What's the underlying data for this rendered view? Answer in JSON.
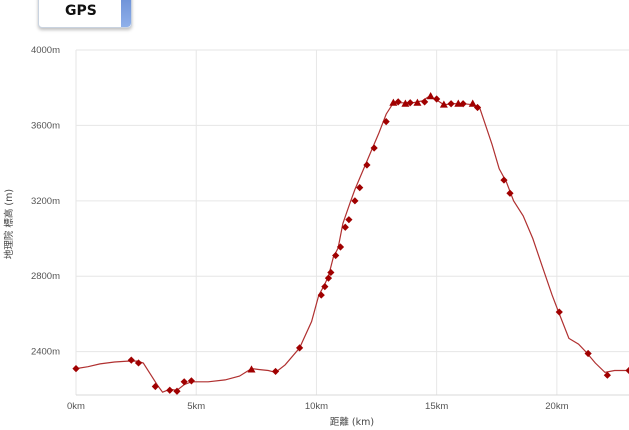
{
  "tab": {
    "label": "GPS"
  },
  "chart_data": {
    "type": "line",
    "xlabel": "距離 (km)",
    "ylabel": "地理院 標高 (m)",
    "xlim": [
      0,
      23
    ],
    "ylim": [
      2170,
      4000
    ],
    "grid": true,
    "x_ticks": [
      0,
      5,
      10,
      15,
      20
    ],
    "x_tick_labels": [
      "0km",
      "5km",
      "10km",
      "15km",
      "20km"
    ],
    "y_ticks": [
      2400,
      2800,
      3200,
      3600,
      4000
    ],
    "y_tick_labels": [
      "2400m",
      "2800m",
      "3200m",
      "3600m",
      "4000m"
    ],
    "colors": {
      "line": "#b03030",
      "marker": "#a00000",
      "grid": "#e6e6e6"
    },
    "series": [
      {
        "points": [
          [
            0.0,
            2310
          ],
          [
            0.5,
            2320
          ],
          [
            1.0,
            2335
          ],
          [
            1.6,
            2345
          ],
          [
            2.2,
            2350
          ],
          [
            2.55,
            2350
          ],
          [
            2.8,
            2340
          ],
          [
            3.1,
            2280
          ],
          [
            3.4,
            2220
          ],
          [
            3.6,
            2185
          ],
          [
            3.9,
            2200
          ],
          [
            4.2,
            2195
          ],
          [
            4.5,
            2225
          ],
          [
            4.8,
            2240
          ],
          [
            5.5,
            2240
          ],
          [
            6.2,
            2250
          ],
          [
            6.8,
            2270
          ],
          [
            7.3,
            2310
          ],
          [
            7.6,
            2305
          ],
          [
            8.0,
            2300
          ],
          [
            8.3,
            2290
          ],
          [
            8.7,
            2330
          ],
          [
            9.3,
            2420
          ],
          [
            9.8,
            2560
          ],
          [
            10.1,
            2700
          ],
          [
            10.3,
            2745
          ],
          [
            10.5,
            2800
          ],
          [
            10.7,
            2900
          ],
          [
            10.9,
            2950
          ],
          [
            11.1,
            3080
          ],
          [
            11.4,
            3190
          ],
          [
            11.6,
            3260
          ],
          [
            12.0,
            3380
          ],
          [
            12.3,
            3470
          ],
          [
            12.6,
            3560
          ],
          [
            12.9,
            3660
          ],
          [
            13.2,
            3720
          ],
          [
            13.5,
            3720
          ],
          [
            14.0,
            3720
          ],
          [
            14.4,
            3730
          ],
          [
            14.7,
            3755
          ],
          [
            15.0,
            3735
          ],
          [
            15.3,
            3710
          ],
          [
            15.7,
            3715
          ],
          [
            16.1,
            3715
          ],
          [
            16.5,
            3710
          ],
          [
            16.8,
            3690
          ],
          [
            17.3,
            3500
          ],
          [
            17.6,
            3370
          ],
          [
            17.9,
            3300
          ],
          [
            18.2,
            3200
          ],
          [
            18.6,
            3120
          ],
          [
            19.0,
            3000
          ],
          [
            19.4,
            2850
          ],
          [
            19.8,
            2700
          ],
          [
            20.1,
            2600
          ],
          [
            20.5,
            2470
          ],
          [
            20.9,
            2440
          ],
          [
            21.2,
            2400
          ],
          [
            21.6,
            2340
          ],
          [
            22.0,
            2290
          ],
          [
            22.4,
            2300
          ],
          [
            23.0,
            2300
          ]
        ],
        "markers": [
          {
            "x": 0.0,
            "y": 2310,
            "shape": "diamond"
          },
          {
            "x": 2.3,
            "y": 2355,
            "shape": "diamond"
          },
          {
            "x": 2.6,
            "y": 2340,
            "shape": "diamond"
          },
          {
            "x": 3.3,
            "y": 2215,
            "shape": "diamond"
          },
          {
            "x": 3.9,
            "y": 2195,
            "shape": "diamond"
          },
          {
            "x": 4.2,
            "y": 2190,
            "shape": "diamond"
          },
          {
            "x": 4.5,
            "y": 2240,
            "shape": "diamond"
          },
          {
            "x": 4.8,
            "y": 2245,
            "shape": "diamond"
          },
          {
            "x": 7.3,
            "y": 2305,
            "shape": "triangle"
          },
          {
            "x": 8.3,
            "y": 2295,
            "shape": "diamond"
          },
          {
            "x": 9.3,
            "y": 2420,
            "shape": "diamond"
          },
          {
            "x": 10.2,
            "y": 2700,
            "shape": "diamond"
          },
          {
            "x": 10.35,
            "y": 2745,
            "shape": "diamond"
          },
          {
            "x": 10.5,
            "y": 2790,
            "shape": "diamond"
          },
          {
            "x": 10.6,
            "y": 2820,
            "shape": "diamond"
          },
          {
            "x": 10.8,
            "y": 2910,
            "shape": "diamond"
          },
          {
            "x": 11.0,
            "y": 2955,
            "shape": "diamond"
          },
          {
            "x": 11.2,
            "y": 3060,
            "shape": "diamond"
          },
          {
            "x": 11.35,
            "y": 3100,
            "shape": "diamond"
          },
          {
            "x": 11.6,
            "y": 3200,
            "shape": "diamond"
          },
          {
            "x": 11.8,
            "y": 3270,
            "shape": "diamond"
          },
          {
            "x": 12.1,
            "y": 3390,
            "shape": "diamond"
          },
          {
            "x": 12.4,
            "y": 3480,
            "shape": "diamond"
          },
          {
            "x": 12.9,
            "y": 3620,
            "shape": "diamond"
          },
          {
            "x": 13.2,
            "y": 3720,
            "shape": "triangle"
          },
          {
            "x": 13.4,
            "y": 3725,
            "shape": "diamond"
          },
          {
            "x": 13.7,
            "y": 3715,
            "shape": "triangle"
          },
          {
            "x": 13.9,
            "y": 3720,
            "shape": "diamond"
          },
          {
            "x": 14.2,
            "y": 3720,
            "shape": "triangle"
          },
          {
            "x": 14.5,
            "y": 3725,
            "shape": "diamond"
          },
          {
            "x": 14.75,
            "y": 3755,
            "shape": "triangle"
          },
          {
            "x": 15.0,
            "y": 3740,
            "shape": "diamond"
          },
          {
            "x": 15.3,
            "y": 3710,
            "shape": "triangle"
          },
          {
            "x": 15.6,
            "y": 3715,
            "shape": "diamond"
          },
          {
            "x": 15.9,
            "y": 3715,
            "shape": "triangle"
          },
          {
            "x": 16.1,
            "y": 3715,
            "shape": "diamond"
          },
          {
            "x": 16.5,
            "y": 3715,
            "shape": "triangle"
          },
          {
            "x": 16.7,
            "y": 3695,
            "shape": "diamond"
          },
          {
            "x": 17.8,
            "y": 3310,
            "shape": "diamond"
          },
          {
            "x": 18.05,
            "y": 3240,
            "shape": "diamond"
          },
          {
            "x": 20.1,
            "y": 2610,
            "shape": "diamond"
          },
          {
            "x": 21.3,
            "y": 2390,
            "shape": "diamond"
          },
          {
            "x": 22.1,
            "y": 2275,
            "shape": "diamond"
          },
          {
            "x": 23.0,
            "y": 2300,
            "shape": "diamond"
          }
        ]
      }
    ]
  }
}
